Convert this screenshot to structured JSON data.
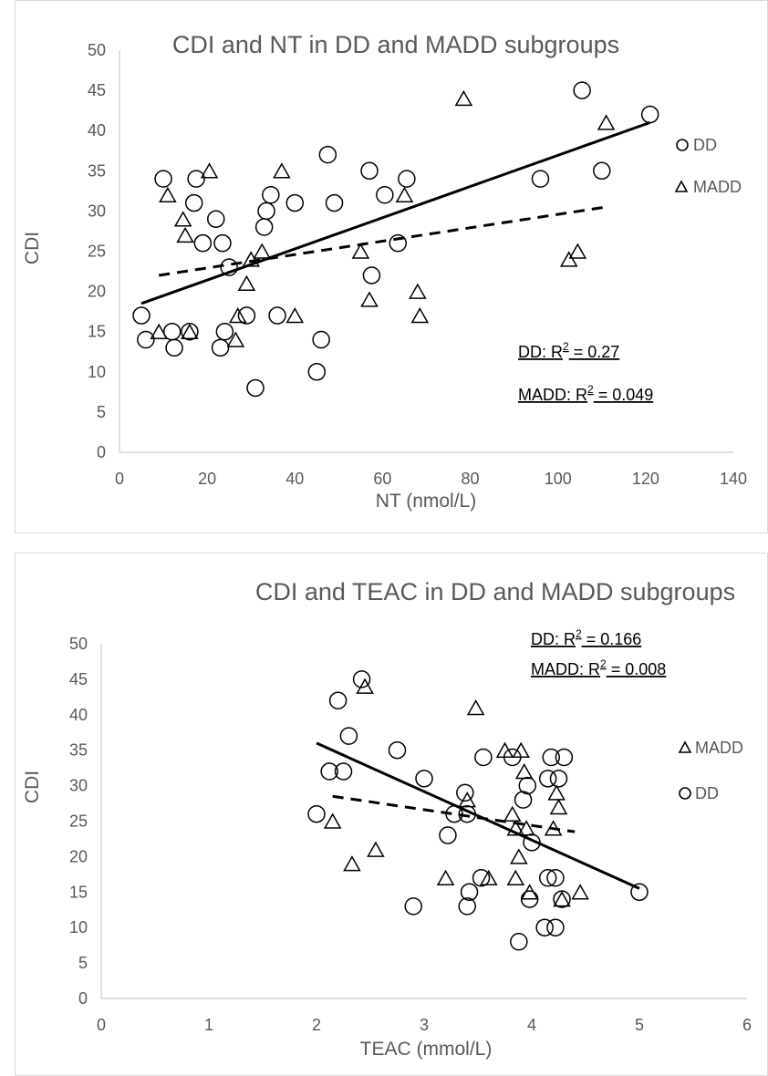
{
  "chart_data": [
    {
      "type": "scatter",
      "title": "CDI and NT in DD and MADD subgroups",
      "xlabel": "NT (nmol/L)",
      "ylabel": "CDI",
      "xlim": [
        0,
        140
      ],
      "ylim": [
        0,
        50
      ],
      "xticks": [
        0,
        20,
        40,
        60,
        80,
        100,
        120,
        140
      ],
      "yticks": [
        0,
        5,
        10,
        15,
        20,
        25,
        30,
        35,
        40,
        45,
        50
      ],
      "grid": false,
      "legend_position": "right",
      "series": [
        {
          "name": "DD",
          "marker": "circle",
          "trendline": {
            "style": "solid",
            "x": [
              5,
              121
            ],
            "y": [
              18.5,
              41
            ]
          },
          "points": [
            [
              5,
              17
            ],
            [
              6,
              14
            ],
            [
              10,
              34
            ],
            [
              12,
              15
            ],
            [
              12.5,
              13
            ],
            [
              16,
              15
            ],
            [
              17,
              31
            ],
            [
              17.5,
              34
            ],
            [
              19,
              26
            ],
            [
              22,
              29
            ],
            [
              23,
              13
            ],
            [
              23.5,
              26
            ],
            [
              24,
              15
            ],
            [
              25,
              23
            ],
            [
              29,
              17
            ],
            [
              31,
              8
            ],
            [
              33,
              28
            ],
            [
              33.5,
              30
            ],
            [
              34.5,
              32
            ],
            [
              36,
              17
            ],
            [
              40,
              31
            ],
            [
              45,
              10
            ],
            [
              46,
              14
            ],
            [
              47.5,
              37
            ],
            [
              49,
              31
            ],
            [
              57,
              35
            ],
            [
              57.5,
              22
            ],
            [
              60.5,
              32
            ],
            [
              63.5,
              26
            ],
            [
              65.5,
              34
            ],
            [
              96,
              34
            ],
            [
              105.5,
              45
            ],
            [
              110,
              35
            ],
            [
              121,
              42
            ]
          ]
        },
        {
          "name": "MADD",
          "marker": "triangle",
          "trendline": {
            "style": "dashed",
            "x": [
              9,
              111
            ],
            "y": [
              22,
              30.5
            ]
          },
          "points": [
            [
              9,
              15
            ],
            [
              11,
              32
            ],
            [
              14.5,
              29
            ],
            [
              15,
              27
            ],
            [
              16,
              15
            ],
            [
              20.5,
              35
            ],
            [
              26.5,
              14
            ],
            [
              27,
              17
            ],
            [
              29,
              21
            ],
            [
              30,
              24
            ],
            [
              32.5,
              25
            ],
            [
              37,
              35
            ],
            [
              40,
              17
            ],
            [
              55,
              25
            ],
            [
              57,
              19
            ],
            [
              65,
              32
            ],
            [
              68,
              20
            ],
            [
              68.5,
              17
            ],
            [
              78.5,
              44
            ],
            [
              102.5,
              24
            ],
            [
              104.5,
              25
            ],
            [
              111,
              41
            ]
          ]
        }
      ],
      "annotations": [
        {
          "label": "DD: R",
          "sup": "2",
          "value": " = 0.27"
        },
        {
          "label": "MADD: R",
          "sup": "2",
          "value": " = 0.049"
        }
      ]
    },
    {
      "type": "scatter",
      "title": "CDI and TEAC in DD and MADD subgroups",
      "xlabel": "TEAC (mmol/L)",
      "ylabel": "CDI",
      "xlim": [
        0,
        6
      ],
      "ylim": [
        0,
        50
      ],
      "xticks": [
        0,
        1,
        2,
        3,
        4,
        5,
        6
      ],
      "yticks": [
        0,
        5,
        10,
        15,
        20,
        25,
        30,
        35,
        40,
        45,
        50
      ],
      "grid": false,
      "legend_position": "right",
      "series": [
        {
          "name": "MADD",
          "marker": "triangle",
          "trendline": {
            "style": "dashed",
            "x": [
              2.15,
              4.4
            ],
            "y": [
              28.5,
              23.5
            ]
          },
          "points": [
            [
              2.15,
              25
            ],
            [
              2.33,
              19
            ],
            [
              2.55,
              21
            ],
            [
              2.45,
              44
            ],
            [
              3.2,
              17
            ],
            [
              3.4,
              28
            ],
            [
              3.48,
              41
            ],
            [
              3.6,
              17
            ],
            [
              3.75,
              35
            ],
            [
              3.82,
              26
            ],
            [
              3.85,
              24
            ],
            [
              3.85,
              17
            ],
            [
              3.88,
              20
            ],
            [
              3.9,
              35
            ],
            [
              3.93,
              32
            ],
            [
              3.95,
              24
            ],
            [
              3.98,
              15
            ],
            [
              4.2,
              24
            ],
            [
              4.23,
              29
            ],
            [
              4.25,
              27
            ],
            [
              4.28,
              14
            ],
            [
              4.45,
              15
            ]
          ]
        },
        {
          "name": "DD",
          "marker": "circle",
          "trendline": {
            "style": "solid",
            "x": [
              2,
              5
            ],
            "y": [
              36,
              15.5
            ]
          },
          "points": [
            [
              2,
              26
            ],
            [
              2.12,
              32
            ],
            [
              2.2,
              42
            ],
            [
              2.25,
              32
            ],
            [
              2.3,
              37
            ],
            [
              2.42,
              45
            ],
            [
              2.75,
              35
            ],
            [
              2.9,
              13
            ],
            [
              3,
              31
            ],
            [
              3.22,
              23
            ],
            [
              3.28,
              26
            ],
            [
              3.38,
              29
            ],
            [
              3.4,
              26
            ],
            [
              3.4,
              13
            ],
            [
              3.42,
              15
            ],
            [
              3.53,
              17
            ],
            [
              3.55,
              34
            ],
            [
              3.82,
              34
            ],
            [
              3.88,
              8
            ],
            [
              3.92,
              28
            ],
            [
              3.96,
              30
            ],
            [
              3.98,
              14
            ],
            [
              4,
              22
            ],
            [
              4.12,
              10
            ],
            [
              4.15,
              31
            ],
            [
              4.15,
              17
            ],
            [
              4.18,
              34
            ],
            [
              4.22,
              17
            ],
            [
              4.22,
              10
            ],
            [
              4.25,
              31
            ],
            [
              4.28,
              14
            ],
            [
              4.3,
              34
            ],
            [
              5,
              15
            ]
          ]
        }
      ],
      "annotations": [
        {
          "label": "DD: R",
          "sup": "2",
          "value": " = 0.166"
        },
        {
          "label": "MADD: R",
          "sup": "2",
          "value": " = 0.008"
        }
      ]
    }
  ]
}
